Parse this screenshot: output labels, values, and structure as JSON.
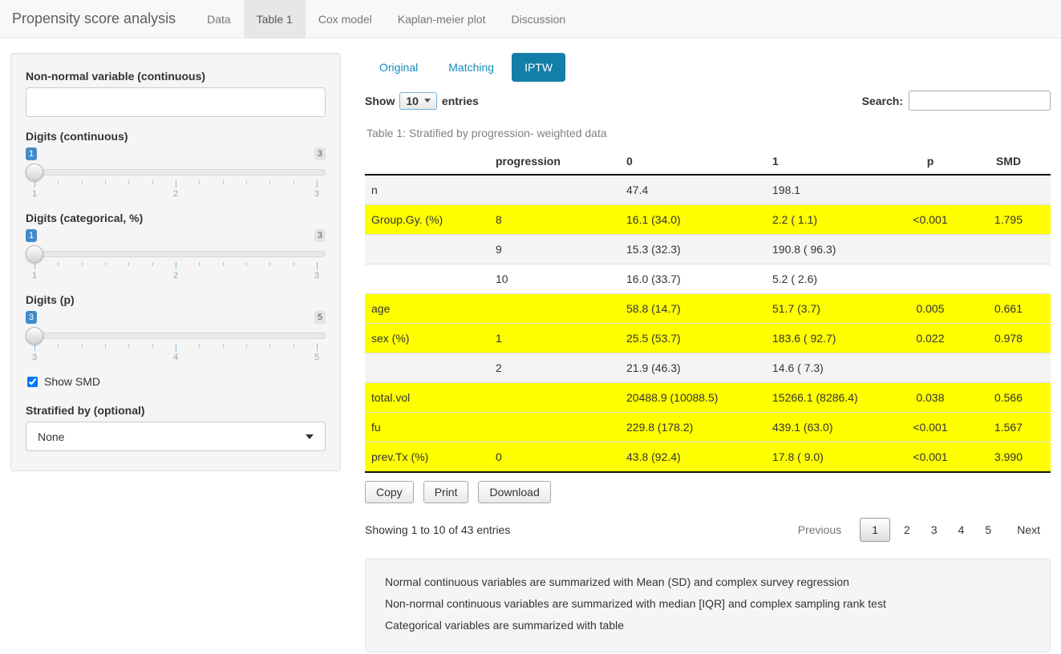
{
  "navbar": {
    "brand": "Propensity score analysis",
    "tabs": [
      {
        "label": "Data",
        "active": false
      },
      {
        "label": "Table 1",
        "active": true
      },
      {
        "label": "Cox model",
        "active": false
      },
      {
        "label": "Kaplan-meier plot",
        "active": false
      },
      {
        "label": "Discussion",
        "active": false
      }
    ]
  },
  "sidebar": {
    "nonnormal": {
      "label": "Non-normal variable (continuous)",
      "value": "",
      "placeholder": ""
    },
    "sliders": [
      {
        "label": "Digits (continuous)",
        "value": "1",
        "max": "3",
        "ticks": [
          "1",
          "2",
          "3"
        ]
      },
      {
        "label": "Digits (categorical, %)",
        "value": "1",
        "max": "3",
        "ticks": [
          "1",
          "2",
          "3"
        ]
      },
      {
        "label": "Digits (p)",
        "value": "3",
        "max": "5",
        "ticks": [
          "3",
          "4",
          "5"
        ]
      }
    ],
    "show_smd": {
      "label": "Show SMD",
      "checked": true
    },
    "stratified": {
      "label": "Stratified by (optional)",
      "value": "None"
    }
  },
  "main": {
    "subtabs": [
      {
        "label": "Original",
        "active": false
      },
      {
        "label": "Matching",
        "active": false
      },
      {
        "label": "IPTW",
        "active": true
      }
    ],
    "length_menu": {
      "show": "Show",
      "selected": "10",
      "entries": "entries"
    },
    "search": {
      "label": "Search:",
      "value": ""
    },
    "caption": "Table 1: Stratified by progression- weighted data",
    "table": {
      "headers": [
        "",
        "progression",
        "0",
        "1",
        "p",
        "SMD"
      ],
      "rows": [
        {
          "cells": [
            "n",
            "",
            "47.4",
            "198.1",
            "",
            ""
          ],
          "highlight": false
        },
        {
          "cells": [
            "Group.Gy. (%)",
            "8",
            "16.1 (34.0)",
            "2.2 ( 1.1)",
            "<0.001",
            "1.795"
          ],
          "highlight": true
        },
        {
          "cells": [
            "",
            "9",
            "15.3 (32.3)",
            "190.8 ( 96.3)",
            "",
            ""
          ],
          "highlight": false
        },
        {
          "cells": [
            "",
            "10",
            "16.0 (33.7)",
            "5.2 ( 2.6)",
            "",
            ""
          ],
          "highlight": false
        },
        {
          "cells": [
            "age",
            "",
            "58.8 (14.7)",
            "51.7 (3.7)",
            "0.005",
            "0.661"
          ],
          "highlight": true
        },
        {
          "cells": [
            "sex (%)",
            "1",
            "25.5 (53.7)",
            "183.6 ( 92.7)",
            "0.022",
            "0.978"
          ],
          "highlight": true
        },
        {
          "cells": [
            "",
            "2",
            "21.9 (46.3)",
            "14.6 ( 7.3)",
            "",
            ""
          ],
          "highlight": false
        },
        {
          "cells": [
            "total.vol",
            "",
            "20488.9 (10088.5)",
            "15266.1 (8286.4)",
            "0.038",
            "0.566"
          ],
          "highlight": true
        },
        {
          "cells": [
            "fu",
            "",
            "229.8 (178.2)",
            "439.1 (63.0)",
            "<0.001",
            "1.567"
          ],
          "highlight": true
        },
        {
          "cells": [
            "prev.Tx (%)",
            "0",
            "43.8 (92.4)",
            "17.8 ( 9.0)",
            "<0.001",
            "3.990"
          ],
          "highlight": true
        }
      ]
    },
    "buttons": {
      "copy": "Copy",
      "print": "Print",
      "download": "Download"
    },
    "info": "Showing 1 to 10 of 43 entries",
    "pagination": {
      "previous": "Previous",
      "pages": [
        "1",
        "2",
        "3",
        "4",
        "5"
      ],
      "current": "1",
      "next": "Next"
    },
    "notes": [
      "Normal continuous variables are summarized with Mean (SD) and complex survey regression",
      "Non-normal continuous variables are summarized with median [IQR] and complex sampling rank test",
      "Categorical variables are summarized with table"
    ]
  },
  "colors": {
    "link_blue": "#158cba",
    "active_pill": "#137ea7",
    "slider_badge_blue": "#428bca",
    "highlight_yellow": "#ffff00",
    "navbar_bg": "#f8f8f8",
    "well_bg": "#f5f5f5"
  }
}
